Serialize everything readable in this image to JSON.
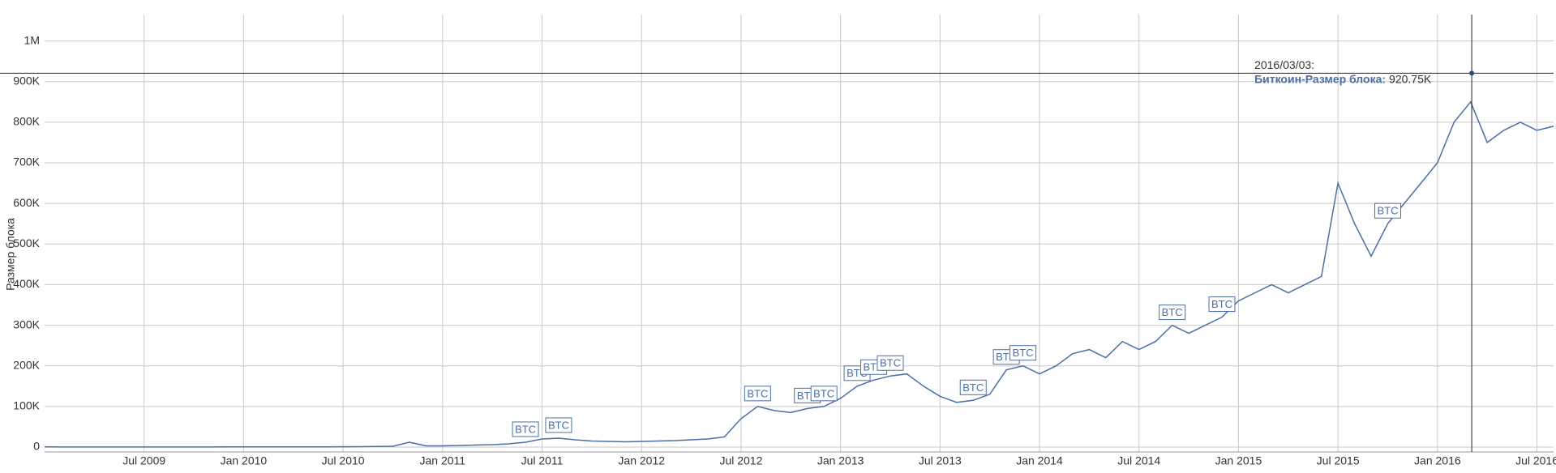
{
  "chart_data": {
    "type": "line",
    "y_axis_label": "Размер блока",
    "x": [
      "2009-01",
      "2009-02",
      "2009-03",
      "2009-04",
      "2009-05",
      "2009-06",
      "2009-07",
      "2009-08",
      "2009-09",
      "2009-10",
      "2009-11",
      "2009-12",
      "2010-01",
      "2010-02",
      "2010-03",
      "2010-04",
      "2010-05",
      "2010-06",
      "2010-07",
      "2010-08",
      "2010-09",
      "2010-10",
      "2010-11",
      "2010-12",
      "2011-01",
      "2011-02",
      "2011-03",
      "2011-04",
      "2011-05",
      "2011-06",
      "2011-07",
      "2011-08",
      "2011-09",
      "2011-10",
      "2011-11",
      "2011-12",
      "2012-01",
      "2012-02",
      "2012-03",
      "2012-04",
      "2012-05",
      "2012-06",
      "2012-07",
      "2012-08",
      "2012-09",
      "2012-10",
      "2012-11",
      "2012-12",
      "2013-01",
      "2013-02",
      "2013-03",
      "2013-04",
      "2013-05",
      "2013-06",
      "2013-07",
      "2013-08",
      "2013-09",
      "2013-10",
      "2013-11",
      "2013-12",
      "2014-01",
      "2014-02",
      "2014-03",
      "2014-04",
      "2014-05",
      "2014-06",
      "2014-07",
      "2014-08",
      "2014-09",
      "2014-10",
      "2014-11",
      "2014-12",
      "2015-01",
      "2015-02",
      "2015-03",
      "2015-04",
      "2015-05",
      "2015-06",
      "2015-07",
      "2015-08",
      "2015-09",
      "2015-10",
      "2015-11",
      "2015-12",
      "2016-01",
      "2016-02",
      "2016-03",
      "2016-04",
      "2016-05",
      "2016-06",
      "2016-07",
      "2016-08"
    ],
    "series": [
      {
        "name": "Биткоин-Размер блока",
        "color": "#4a6fa5",
        "values": [
          300,
          250,
          250,
          250,
          250,
          250,
          250,
          250,
          250,
          250,
          250,
          300,
          300,
          300,
          300,
          400,
          400,
          500,
          800,
          1000,
          1500,
          2000,
          12000,
          3000,
          3000,
          4000,
          5000,
          6000,
          8000,
          12000,
          20000,
          22000,
          18000,
          15000,
          14000,
          13000,
          14000,
          15000,
          16000,
          18000,
          20000,
          25000,
          70000,
          100000,
          90000,
          85000,
          95000,
          100000,
          120000,
          150000,
          165000,
          175000,
          180000,
          150000,
          125000,
          110000,
          115000,
          130000,
          190000,
          200000,
          180000,
          200000,
          230000,
          240000,
          220000,
          260000,
          240000,
          260000,
          300000,
          280000,
          300000,
          320000,
          360000,
          380000,
          400000,
          380000,
          400000,
          420000,
          650000,
          550000,
          470000,
          550000,
          600000,
          650000,
          700000,
          800000,
          850000,
          750000,
          780000,
          800000,
          780000,
          790000
        ]
      }
    ],
    "annotations": [
      {
        "x": "2011-06",
        "label": "BTC"
      },
      {
        "x": "2011-08",
        "label": "BTC"
      },
      {
        "x": "2012-08",
        "label": "BTC"
      },
      {
        "x": "2012-11",
        "label": "BTC"
      },
      {
        "x": "2012-12",
        "label": "BTC"
      },
      {
        "x": "2013-02",
        "label": "BTC"
      },
      {
        "x": "2013-03",
        "label": "BTC"
      },
      {
        "x": "2013-04",
        "label": "BTC"
      },
      {
        "x": "2013-09",
        "label": "BTC"
      },
      {
        "x": "2013-11",
        "label": "BTC"
      },
      {
        "x": "2013-12",
        "label": "BTC"
      },
      {
        "x": "2014-09",
        "label": "BTC"
      },
      {
        "x": "2014-12",
        "label": "BTC"
      },
      {
        "x": "2015-10",
        "label": "BTC"
      }
    ],
    "tooltip": {
      "date": "2016/03/03",
      "date_label": "2016/03/03:",
      "name_label": "Биткоин-Размер блока:",
      "value": 920750,
      "value_label": "920.75K"
    },
    "xlim": [
      "2009-01",
      "2016-08"
    ],
    "xticks": [
      {
        "value": "2009-07",
        "label": "Jul 2009"
      },
      {
        "value": "2010-01",
        "label": "Jan 2010"
      },
      {
        "value": "2010-07",
        "label": "Jul 2010"
      },
      {
        "value": "2011-01",
        "label": "Jan 2011"
      },
      {
        "value": "2011-07",
        "label": "Jul 2011"
      },
      {
        "value": "2012-01",
        "label": "Jan 2012"
      },
      {
        "value": "2012-07",
        "label": "Jul 2012"
      },
      {
        "value": "2013-01",
        "label": "Jan 2013"
      },
      {
        "value": "2013-07",
        "label": "Jul 2013"
      },
      {
        "value": "2014-01",
        "label": "Jan 2014"
      },
      {
        "value": "2014-07",
        "label": "Jul 2014"
      },
      {
        "value": "2015-01",
        "label": "Jan 2015"
      },
      {
        "value": "2015-07",
        "label": "Jul 2015"
      },
      {
        "value": "2016-01",
        "label": "Jan 2016"
      },
      {
        "value": "2016-07",
        "label": "Jul 2016"
      }
    ],
    "ylim": [
      -12000,
      1065000
    ],
    "yticks": [
      {
        "value": 0,
        "label": "0"
      },
      {
        "value": 100000,
        "label": "100K"
      },
      {
        "value": 200000,
        "label": "200K"
      },
      {
        "value": 300000,
        "label": "300K"
      },
      {
        "value": 400000,
        "label": "400K"
      },
      {
        "value": 500000,
        "label": "500K"
      },
      {
        "value": 600000,
        "label": "600K"
      },
      {
        "value": 700000,
        "label": "700K"
      },
      {
        "value": 800000,
        "label": "800K"
      },
      {
        "value": 900000,
        "label": "900K"
      },
      {
        "value": 1000000,
        "label": "1M"
      }
    ],
    "grid": true
  }
}
